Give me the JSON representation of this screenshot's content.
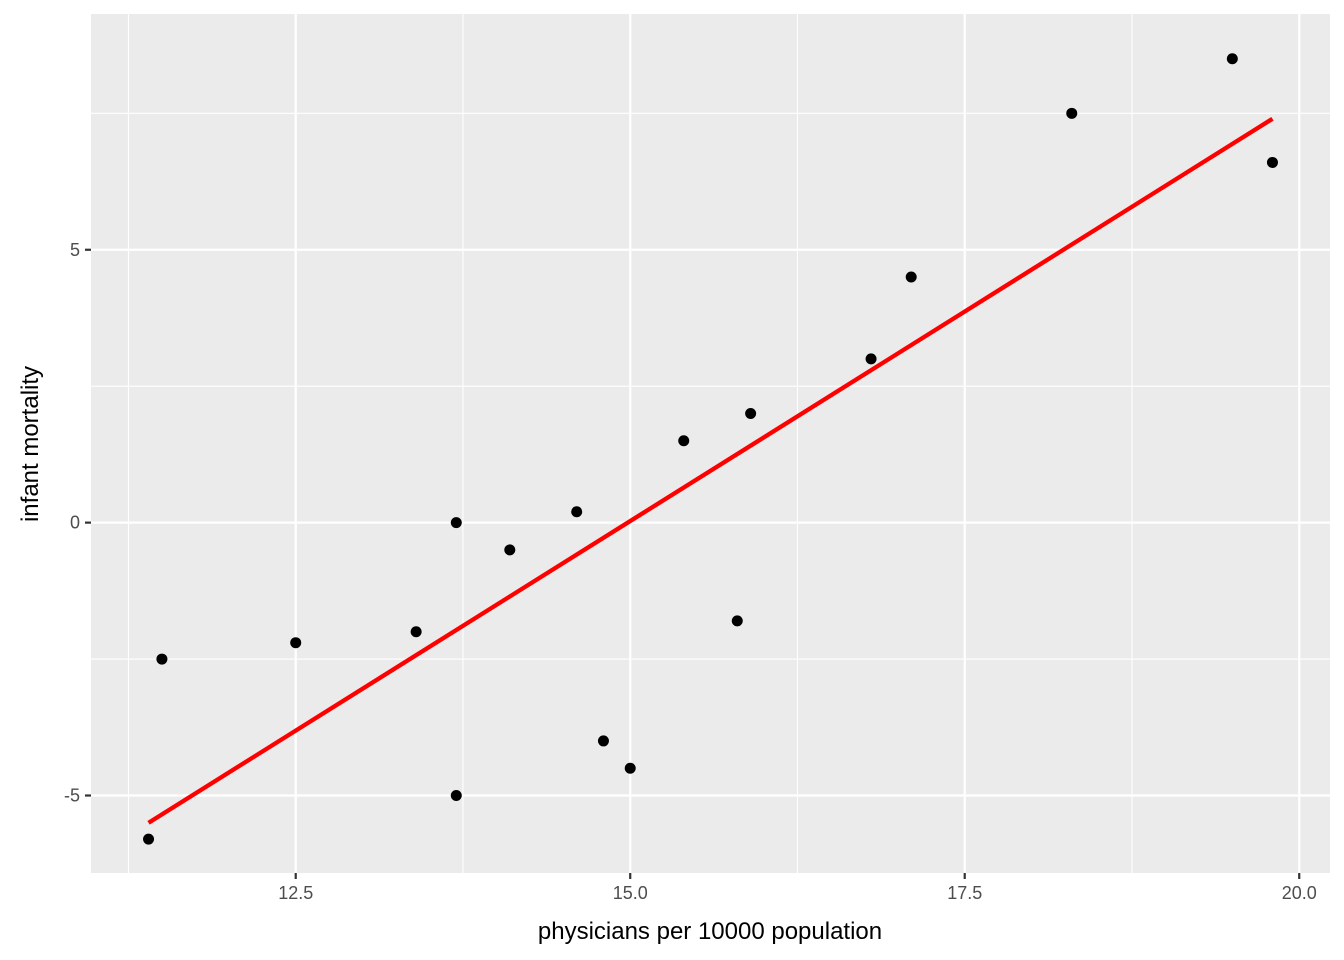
{
  "chart_data": {
    "type": "scatter",
    "title": "",
    "xlabel": "physicians per 10000 population",
    "ylabel": "infant mortality",
    "xlim": [
      10.97,
      20.23
    ],
    "ylim": [
      -6.42,
      9.32
    ],
    "grid": true,
    "x_ticks": [
      12.5,
      15.0,
      17.5,
      20.0
    ],
    "x_tick_labels": [
      "12.5",
      "15.0",
      "17.5",
      "20.0"
    ],
    "y_ticks": [
      -5,
      0,
      5
    ],
    "y_tick_labels": [
      "-5",
      "0",
      "5"
    ],
    "points": [
      {
        "x": 11.4,
        "y": -5.8
      },
      {
        "x": 11.5,
        "y": -2.5
      },
      {
        "x": 12.5,
        "y": -2.2
      },
      {
        "x": 13.4,
        "y": -2.0
      },
      {
        "x": 13.7,
        "y": 0.0
      },
      {
        "x": 13.7,
        "y": -5.0
      },
      {
        "x": 14.1,
        "y": -0.5
      },
      {
        "x": 14.6,
        "y": 0.2
      },
      {
        "x": 14.8,
        "y": -4.0
      },
      {
        "x": 15.0,
        "y": -4.5
      },
      {
        "x": 15.4,
        "y": 1.5
      },
      {
        "x": 15.8,
        "y": -1.8
      },
      {
        "x": 15.9,
        "y": 2.0
      },
      {
        "x": 16.8,
        "y": 3.0
      },
      {
        "x": 17.1,
        "y": 4.5
      },
      {
        "x": 18.3,
        "y": 7.5
      },
      {
        "x": 19.5,
        "y": 8.5
      },
      {
        "x": 19.8,
        "y": 6.6
      }
    ],
    "fit_line": {
      "x": [
        11.4,
        19.8
      ],
      "y": [
        -5.5,
        7.4
      ],
      "color": "#ff0000"
    },
    "colors": {
      "panel": "#ebebeb",
      "grid": "#ffffff",
      "points": "#000000"
    }
  }
}
